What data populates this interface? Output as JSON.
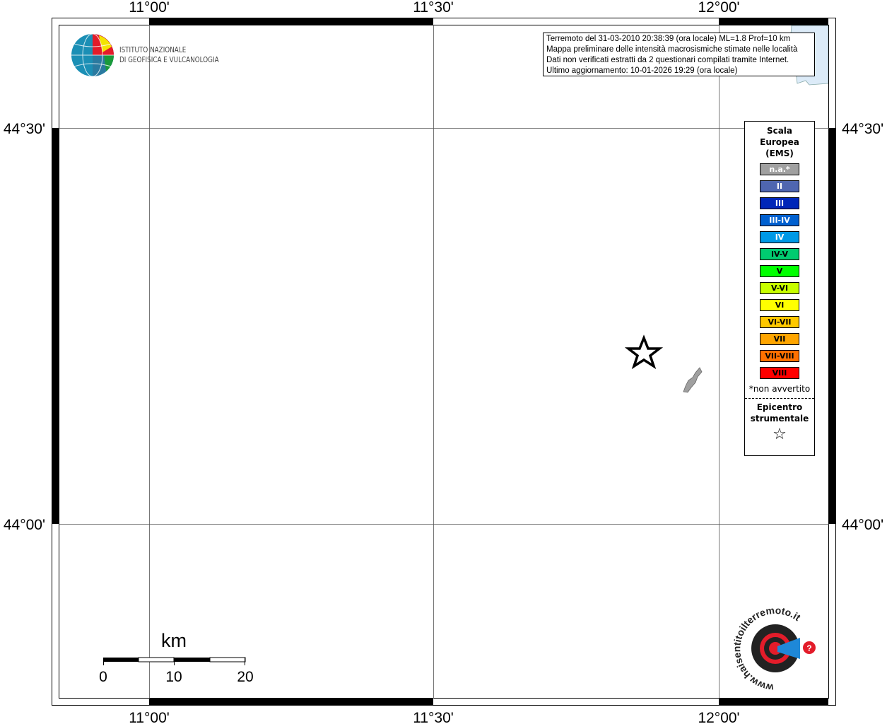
{
  "map": {
    "lon_labels": [
      "11°00'",
      "11°30'",
      "12°00'"
    ],
    "lat_labels": [
      "44°30'",
      "44°00'"
    ],
    "scale_bar": {
      "unit": "km",
      "ticks": [
        "0",
        "10",
        "20"
      ]
    }
  },
  "info_box": {
    "line1": "Terremoto del 31-03-2010 20:38:39 (ora locale) ML=1.8 Prof=10 km",
    "line2": "Mappa preliminare delle intensità macrosismiche stimate nelle località",
    "line3": "Dati non verificati estratti da 2 questionari compilati tramite Internet.",
    "line4": "Ultimo aggiornamento: 10-01-2026 19:29 (ora locale)"
  },
  "logo_ingv": {
    "line1": "ISTITUTO NAZIONALE",
    "line2": "DI GEOFISICA E VULCANOLOGIA"
  },
  "logo_hst": "www.haisentitoilterremoto.it",
  "legend": {
    "title": [
      "Scala",
      "Europea",
      "(EMS)"
    ],
    "classes": [
      {
        "label": "n.a.*",
        "color": "#a0a0a0",
        "text": "#fff"
      },
      {
        "label": "II",
        "color": "#4f66b0",
        "text": "#fff"
      },
      {
        "label": "III",
        "color": "#0026b8",
        "text": "#fff"
      },
      {
        "label": "III-IV",
        "color": "#0060d0",
        "text": "#fff"
      },
      {
        "label": "IV",
        "color": "#0099e6",
        "text": "#fff"
      },
      {
        "label": "IV-V",
        "color": "#00cc70",
        "text": "#000"
      },
      {
        "label": "V",
        "color": "#00ff00",
        "text": "#000"
      },
      {
        "label": "V-VI",
        "color": "#c8ff00",
        "text": "#000"
      },
      {
        "label": "VI",
        "color": "#ffff00",
        "text": "#000"
      },
      {
        "label": "VI-VII",
        "color": "#ffc800",
        "text": "#000"
      },
      {
        "label": "VII",
        "color": "#ffa500",
        "text": "#000"
      },
      {
        "label": "VII-VIII",
        "color": "#ff7000",
        "text": "#000"
      },
      {
        "label": "VIII",
        "color": "#ff0000",
        "text": "#000"
      }
    ],
    "note": "*non avvertito",
    "epicenter_label": [
      "Epicentro",
      "strumentale"
    ],
    "epicenter_icon": "star-icon"
  }
}
